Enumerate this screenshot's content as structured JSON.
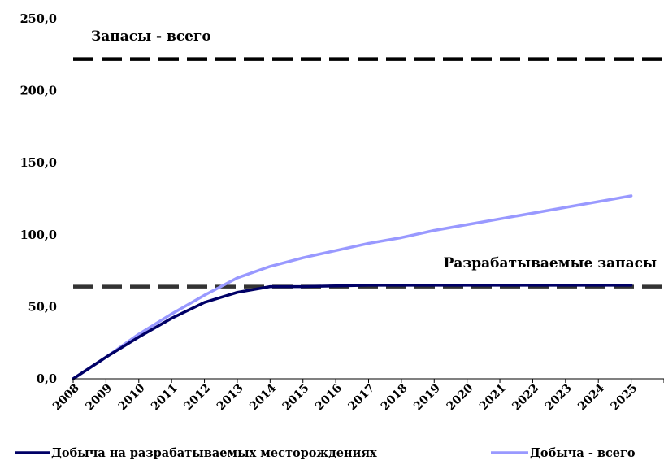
{
  "chart_data": {
    "type": "line",
    "categories": [
      "2008",
      "2009",
      "2010",
      "2011",
      "2012",
      "2013",
      "2014",
      "2015",
      "2016",
      "2017",
      "2018",
      "2019",
      "2020",
      "2021",
      "2022",
      "2023",
      "2024",
      "2025"
    ],
    "y_ticks": [
      "0,0",
      "50,0",
      "100,0",
      "150,0",
      "200,0",
      "250,0"
    ],
    "ylim": [
      0,
      250
    ],
    "grid": false,
    "legend_position": "bottom",
    "series": [
      {
        "name": "Добыча на разрабатываемых месторождениях",
        "color": "#000066",
        "values": [
          0,
          15,
          29,
          42,
          53,
          60,
          64,
          64,
          64.5,
          65,
          65,
          65,
          65,
          65,
          65,
          65,
          65,
          65
        ]
      },
      {
        "name": "Добыча - всего",
        "color": "#9999ff",
        "values": [
          0,
          15,
          31,
          45,
          58,
          70,
          78,
          84,
          89,
          94,
          98,
          103,
          107,
          111,
          115,
          119,
          123,
          127
        ]
      }
    ],
    "reference_lines": [
      {
        "label": "Запасы - всего",
        "value": 222,
        "color": "#000000"
      },
      {
        "label": "Разрабатываемые запасы",
        "value": 64,
        "color": "#333333"
      }
    ]
  }
}
